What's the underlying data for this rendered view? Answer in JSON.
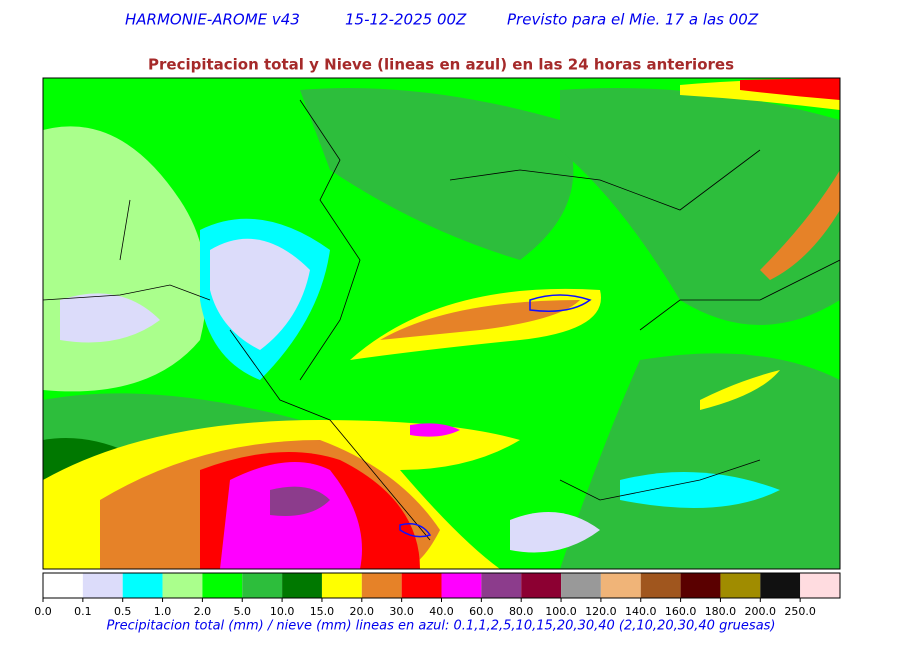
{
  "header": {
    "model": "HARMONIE-AROME v43",
    "run": "15-12-2025 00Z",
    "forecast": "Previsto para el Mie. 17 a las 00Z",
    "subtitle": "Precipitacion total y Nieve (lineas en azul) en las 24 horas anteriores"
  },
  "colorbar": {
    "labels": [
      "0.0",
      "0.1",
      "0.5",
      "1.0",
      "2.0",
      "5.0",
      "10.0",
      "15.0",
      "20.0",
      "30.0",
      "40.0",
      "60.0",
      "80.0",
      "100.0",
      "120.0",
      "140.0",
      "160.0",
      "180.0",
      "200.0",
      "250.0"
    ],
    "colors": [
      "#ffffff",
      "#dcdcfa",
      "#00ffff",
      "#aaff8c",
      "#00ff00",
      "#2dbe3c",
      "#007800",
      "#ffff00",
      "#e68228",
      "#ff0000",
      "#ff00ff",
      "#8c3c8c",
      "#8c0032",
      "#999999",
      "#f0b478",
      "#a0561e",
      "#5a0000",
      "#a08c00",
      "#111111",
      "#ffdce0"
    ]
  },
  "caption": "Precipitacion total (mm) / nieve (mm) lineas en azul: 0.1,1,2,5,10,15,20,30,40  (2,10,20,30,40 gruesas)"
}
